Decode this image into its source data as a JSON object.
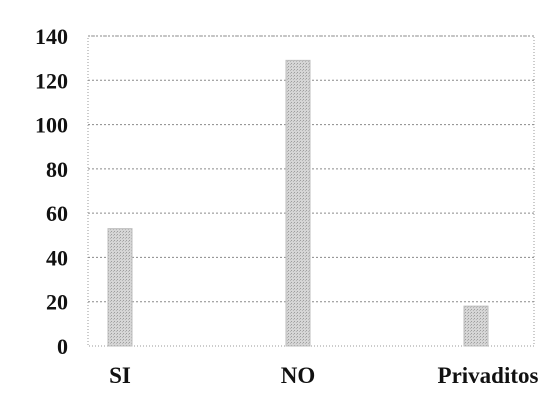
{
  "chart_data": {
    "type": "bar",
    "categories": [
      "SI",
      "NO",
      "Privaditos"
    ],
    "values": [
      53,
      129,
      18
    ],
    "ylim": [
      0,
      140
    ],
    "yticks": [
      0,
      20,
      40,
      60,
      80,
      100,
      120,
      140
    ],
    "grid": true,
    "legend": "none",
    "bar_color": "#c8c8c8"
  }
}
